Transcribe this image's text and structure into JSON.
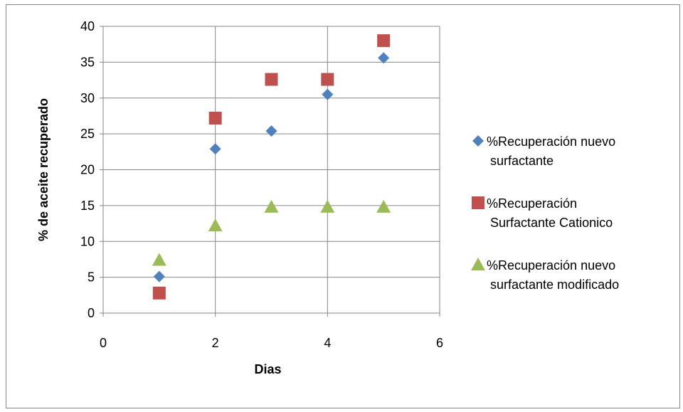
{
  "chart_data": {
    "type": "scatter",
    "xlabel": "Dias",
    "ylabel": "% de aceite recuperado",
    "xlim": [
      0,
      6
    ],
    "ylim": [
      0,
      40
    ],
    "x_ticks": [
      0,
      2,
      4,
      6
    ],
    "y_ticks": [
      0,
      5,
      10,
      15,
      20,
      25,
      30,
      35,
      40
    ],
    "grid": true,
    "legend_position": "right",
    "series": [
      {
        "name": "%Recuperación nuevo surfactante",
        "legend_lines": [
          "%Recuperación nuevo",
          "surfactante"
        ],
        "marker": "diamond",
        "color": "#4f81bd",
        "x": [
          1,
          2,
          3,
          4,
          5
        ],
        "y": [
          5.1,
          22.9,
          25.4,
          30.5,
          35.6
        ]
      },
      {
        "name": "%Recuperación Surfactante Cationico",
        "legend_lines": [
          "%Recuperación",
          "Surfactante Cationico"
        ],
        "marker": "square",
        "color": "#c0504d",
        "x": [
          1,
          2,
          3,
          4,
          5
        ],
        "y": [
          2.8,
          27.2,
          32.6,
          32.6,
          38.0
        ]
      },
      {
        "name": "%Recuperación nuevo surfactante modificado",
        "legend_lines": [
          "%Recuperación nuevo",
          "surfactante modificado"
        ],
        "marker": "triangle",
        "color": "#9bbb59",
        "x": [
          1,
          2,
          3,
          4,
          5
        ],
        "y": [
          7.4,
          12.2,
          14.8,
          14.8,
          14.8
        ]
      }
    ]
  }
}
